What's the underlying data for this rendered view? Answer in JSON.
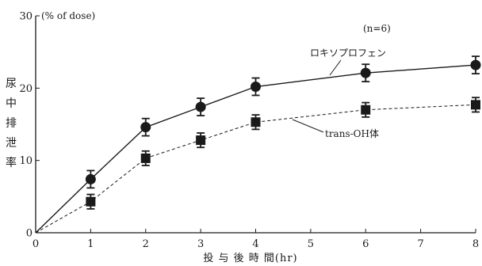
{
  "chart_data": {
    "type": "line",
    "x": [
      0,
      1,
      2,
      3,
      4,
      6,
      8
    ],
    "xlim": [
      0,
      8
    ],
    "ylim": [
      0,
      30
    ],
    "xticks": [
      "0",
      "1",
      "2",
      "3",
      "4",
      "5",
      "6",
      "7",
      "8"
    ],
    "yticks": [
      "0",
      "10",
      "20",
      "30"
    ],
    "xlabel": "投 与 後 時 間(hr)",
    "ylabel_chars": [
      "尿",
      "中",
      "排",
      "泄",
      "率"
    ],
    "y_unit": "(% of dose)",
    "note": "(n=6)",
    "grid": false,
    "series": [
      {
        "name": "ロキソプロフェン",
        "marker": "circle",
        "line_style": "solid",
        "values": [
          0,
          7.4,
          14.6,
          17.4,
          20.2,
          22.1,
          23.2
        ],
        "error": [
          0,
          1.2,
          1.2,
          1.2,
          1.2,
          1.2,
          1.2
        ]
      },
      {
        "name": "trans-OH体",
        "marker": "square",
        "line_style": "dashed",
        "values": [
          0,
          4.3,
          10.3,
          12.8,
          15.3,
          17.0,
          17.7
        ],
        "error": [
          0,
          1.0,
          1.0,
          1.0,
          1.0,
          1.0,
          1.0
        ]
      }
    ]
  }
}
